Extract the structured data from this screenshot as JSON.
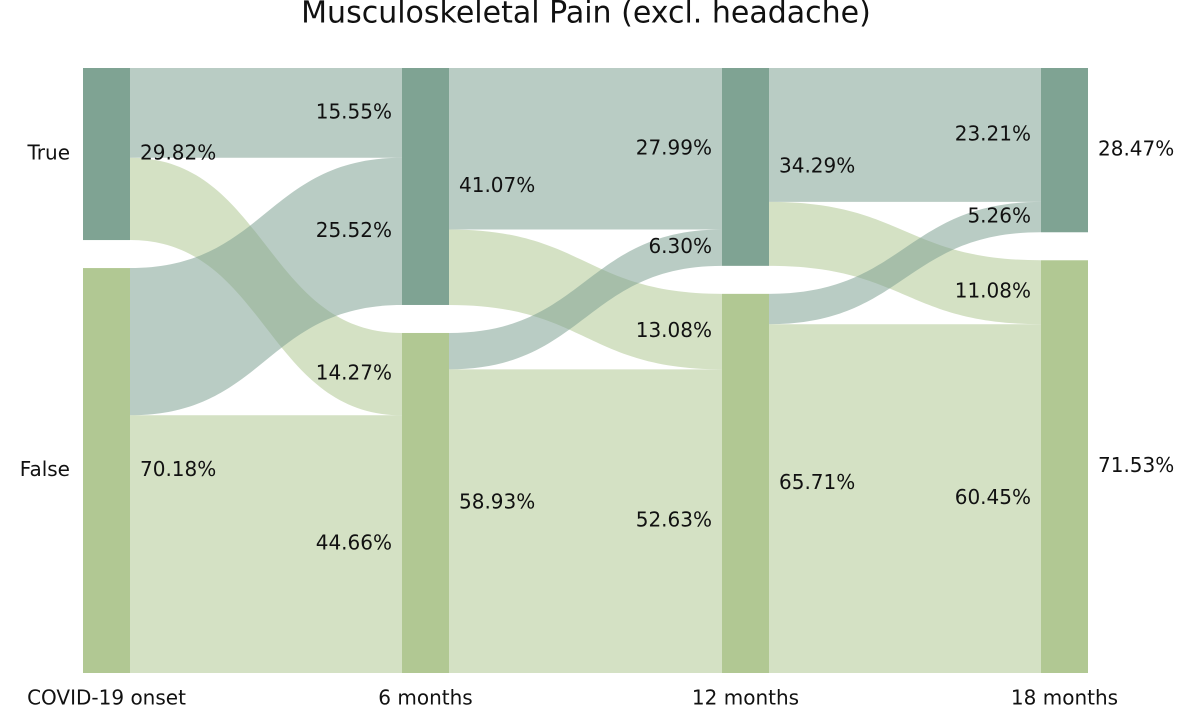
{
  "chart_data": {
    "type": "alluvial",
    "title": "Musculoskeletal Pain (excl. headache)",
    "categories": [
      "True",
      "False"
    ],
    "stages": [
      "COVID-19 onset",
      "6 months",
      "12 months",
      "18 months"
    ],
    "colors": [
      "#7fa393",
      "#b1c893"
    ],
    "nodes": [
      {
        "values": [
          29.82,
          70.18
        ],
        "value_labels": [
          "29.82%",
          "70.18%"
        ]
      },
      {
        "values": [
          41.07,
          58.93
        ],
        "value_labels": [
          "41.07%",
          "58.93%"
        ]
      },
      {
        "values": [
          34.29,
          65.71
        ],
        "value_labels": [
          "34.29%",
          "65.71%"
        ]
      },
      {
        "values": [
          28.47,
          71.53
        ],
        "value_labels": [
          "28.47%",
          "71.53%"
        ]
      }
    ],
    "flows": [
      {
        "values": [
          [
            15.55,
            14.27
          ],
          [
            25.52,
            44.66
          ]
        ],
        "value_labels": [
          [
            "15.55%",
            "14.27%"
          ],
          [
            "25.52%",
            "44.66%"
          ]
        ]
      },
      {
        "values": [
          [
            27.99,
            13.08
          ],
          [
            6.3,
            52.63
          ]
        ],
        "value_labels": [
          [
            "27.99%",
            "13.08%"
          ],
          [
            "6.30%",
            "52.63%"
          ]
        ]
      },
      {
        "values": [
          [
            23.21,
            11.08
          ],
          [
            5.26,
            60.45
          ]
        ],
        "value_labels": [
          [
            "23.21%",
            "11.08%"
          ],
          [
            "5.26%",
            "60.45%"
          ]
        ]
      }
    ]
  }
}
